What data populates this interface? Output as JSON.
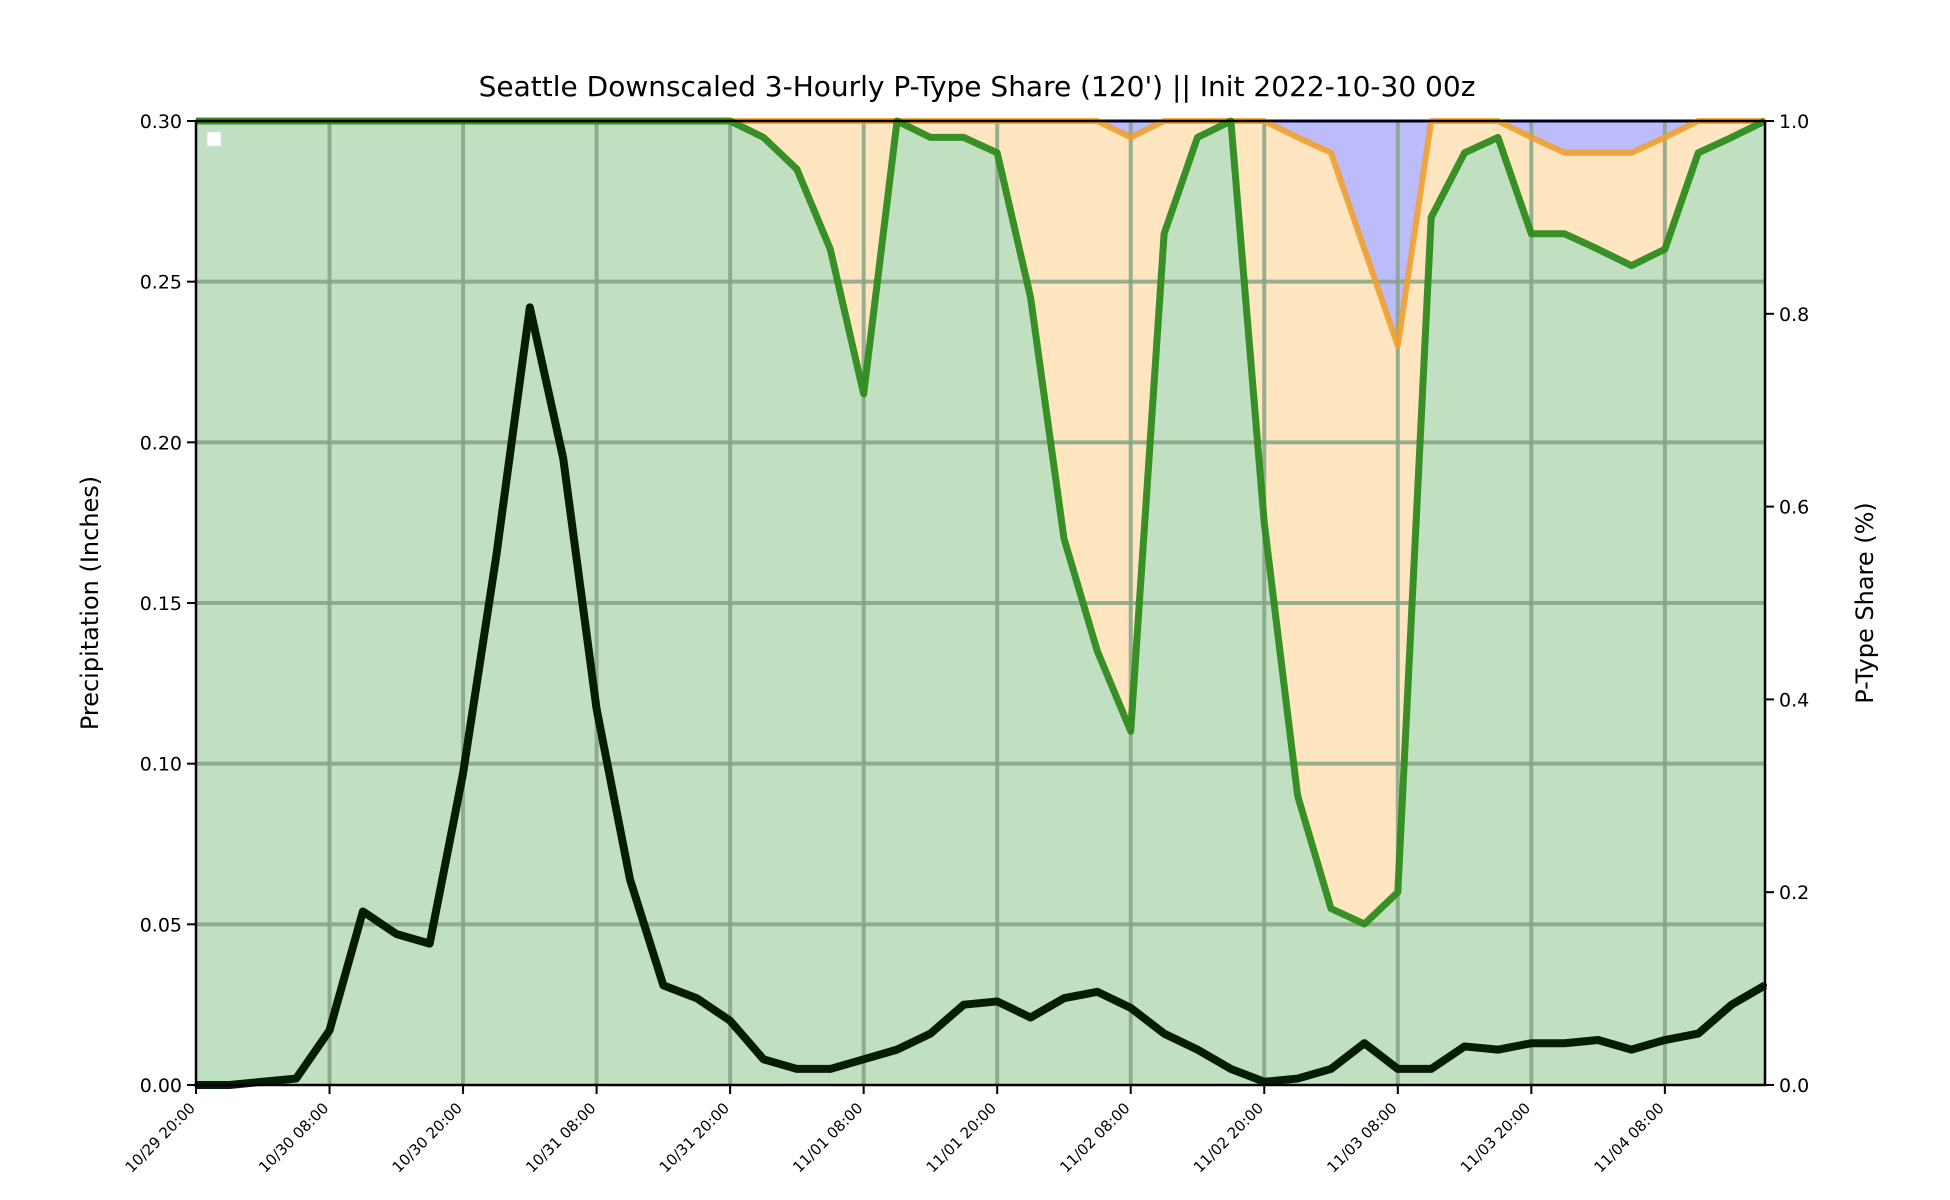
{
  "chart_data": {
    "type": "area",
    "title": "Seattle Downscaled 3-Hourly P-Type Share (120') || Init 2022-10-30 00z",
    "ylabel_left": "Precipitation (Inches)",
    "ylabel_right": "P-Type Share (%)",
    "ylim_left": [
      0,
      0.3
    ],
    "ylim_right": [
      0,
      1.0
    ],
    "xlim": [
      "10/29 20:00",
      "11/04 17:00"
    ],
    "left_ticks": [
      "0.00",
      "0.05",
      "0.10",
      "0.15",
      "0.20",
      "0.25",
      "0.30"
    ],
    "right_ticks": [
      "0.0",
      "0.2",
      "0.4",
      "0.6",
      "0.8",
      "1.0"
    ],
    "x_tick_labels": [
      "10/29 20:00",
      "10/30 08:00",
      "10/30 20:00",
      "10/31 08:00",
      "10/31 20:00",
      "11/01 08:00",
      "11/01 20:00",
      "11/02 08:00",
      "11/02 20:00",
      "11/03 08:00",
      "11/03 20:00",
      "11/04 08:00"
    ],
    "grid": true,
    "legend": "top-left (empty)",
    "colors": {
      "rain_fill": "#c1dfc1",
      "rain_line": "#2e8b1e",
      "mix_fill": "#ffe6c0",
      "mix_line": "#f0a030",
      "snow_fill": "#bcbcfa",
      "snow_line": "#0000aa",
      "precip_line": "#041e04",
      "grid": "#86a386"
    },
    "x": [
      "10/29 20:00",
      "10/29 23:00",
      "10/30 02:00",
      "10/30 05:00",
      "10/30 08:00",
      "10/30 11:00",
      "10/30 14:00",
      "10/30 17:00",
      "10/30 20:00",
      "10/30 23:00",
      "10/31 02:00",
      "10/31 05:00",
      "10/31 08:00",
      "10/31 11:00",
      "10/31 14:00",
      "10/31 17:00",
      "10/31 20:00",
      "10/31 23:00",
      "11/01 02:00",
      "11/01 05:00",
      "11/01 08:00",
      "11/01 11:00",
      "11/01 14:00",
      "11/01 17:00",
      "11/01 20:00",
      "11/01 23:00",
      "11/02 02:00",
      "11/02 05:00",
      "11/02 08:00",
      "11/02 11:00",
      "11/02 14:00",
      "11/02 17:00",
      "11/02 20:00",
      "11/02 23:00",
      "11/03 02:00",
      "11/03 05:00",
      "11/03 08:00",
      "11/03 11:00",
      "11/03 14:00",
      "11/03 17:00",
      "11/03 20:00",
      "11/03 23:00",
      "11/04 02:00",
      "11/04 05:00",
      "11/04 08:00",
      "11/04 11:00",
      "11/04 14:00",
      "11/04 17:00"
    ],
    "series": [
      {
        "name": "",
        "axis": "left",
        "kind": "line",
        "values": [
          0.0,
          0.0,
          0.001,
          0.002,
          0.017,
          0.054,
          0.047,
          0.044,
          0.097,
          0.165,
          0.242,
          0.195,
          0.117,
          0.064,
          0.031,
          0.027,
          0.02,
          0.008,
          0.005,
          0.005,
          0.008,
          0.011,
          0.016,
          0.025,
          0.026,
          0.021,
          0.027,
          0.029,
          0.024,
          0.016,
          0.011,
          0.005,
          0.001,
          0.002,
          0.005,
          0.013,
          0.005,
          0.005,
          0.012,
          0.011,
          0.013,
          0.013,
          0.014,
          0.011,
          0.014,
          0.016,
          0.025,
          0.031
        ]
      },
      {
        "name": "",
        "axis": "right",
        "kind": "stacked-share-rain",
        "values": [
          1.0,
          1.0,
          1.0,
          1.0,
          1.0,
          1.0,
          1.0,
          1.0,
          1.0,
          1.0,
          1.0,
          1.0,
          1.0,
          1.0,
          1.0,
          1.0,
          1.0,
          0.983,
          0.95,
          0.867,
          0.717,
          1.0,
          0.983,
          0.983,
          0.967,
          0.817,
          0.567,
          0.45,
          0.367,
          0.883,
          0.983,
          1.0,
          0.583,
          0.3,
          0.183,
          0.167,
          0.2,
          0.9,
          0.967,
          0.983,
          0.883,
          0.883,
          0.867,
          0.85,
          0.867,
          0.967,
          0.983,
          1.0
        ]
      },
      {
        "name": "",
        "axis": "right",
        "kind": "stacked-share-rain-plus-mix",
        "values": [
          1.0,
          1.0,
          1.0,
          1.0,
          1.0,
          1.0,
          1.0,
          1.0,
          1.0,
          1.0,
          1.0,
          1.0,
          1.0,
          1.0,
          1.0,
          1.0,
          1.0,
          1.0,
          1.0,
          1.0,
          1.0,
          1.0,
          1.0,
          1.0,
          1.0,
          1.0,
          1.0,
          1.0,
          0.983,
          1.0,
          1.0,
          1.0,
          1.0,
          0.983,
          0.967,
          0.867,
          0.767,
          1.0,
          1.0,
          1.0,
          0.983,
          0.967,
          0.967,
          0.967,
          0.983,
          1.0,
          1.0,
          1.0
        ]
      }
    ]
  }
}
